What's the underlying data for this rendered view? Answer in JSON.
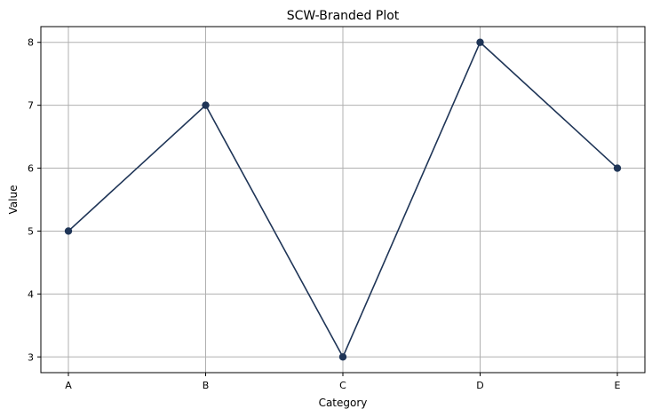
{
  "chart_data": {
    "type": "line",
    "title": "SCW-Branded Plot",
    "xlabel": "Category",
    "ylabel": "Value",
    "categories": [
      "A",
      "B",
      "C",
      "D",
      "E"
    ],
    "series": [
      {
        "values": [
          5,
          7,
          3,
          8,
          6
        ],
        "color": "#1f3557",
        "marker": "circle"
      }
    ],
    "ylim": [
      2.75,
      8.25
    ],
    "yticks": [
      3,
      4,
      5,
      6,
      7,
      8
    ],
    "grid": true,
    "legend": "none"
  }
}
